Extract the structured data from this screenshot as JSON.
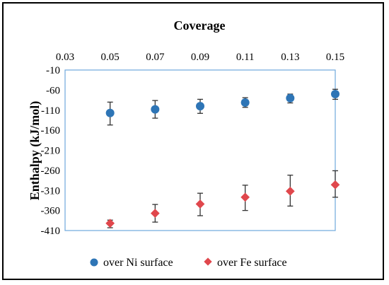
{
  "chart_data": {
    "type": "scatter",
    "xlabel": "Coverage",
    "ylabel": "Enthalpy (kJ/mol)",
    "xlim": [
      0.03,
      0.15
    ],
    "ylim": [
      -410,
      -10
    ],
    "x_ticks": [
      "0.03",
      "0.05",
      "0.07",
      "0.09",
      "0.11",
      "0.13",
      "0.15"
    ],
    "y_ticks": [
      "-10",
      "-60",
      "-110",
      "-160",
      "-210",
      "-260",
      "-310",
      "-360",
      "-410"
    ],
    "x_axis_position": "top",
    "y_axis_inverted": true,
    "grid": false,
    "legend_position": "bottom",
    "series": [
      {
        "name": "over Ni surface",
        "marker": "circle",
        "color": "#2e75b6",
        "x": [
          0.05,
          0.07,
          0.09,
          0.11,
          0.13,
          0.15
        ],
        "y": [
          -117,
          -108,
          -100,
          -91,
          -80,
          -70
        ],
        "err_low": [
          30,
          22,
          18,
          12,
          12,
          13
        ],
        "err_high": [
          27,
          22,
          17,
          12,
          10,
          12
        ]
      },
      {
        "name": "over Fe surface",
        "marker": "diamond",
        "color": "#e0474c",
        "x": [
          0.05,
          0.07,
          0.09,
          0.11,
          0.13,
          0.15
        ],
        "y": [
          -392,
          -367,
          -344,
          -327,
          -312,
          -296
        ],
        "err_low": [
          11,
          22,
          29,
          33,
          37,
          31
        ],
        "err_high": [
          8,
          22,
          27,
          30,
          40,
          35
        ]
      }
    ]
  }
}
